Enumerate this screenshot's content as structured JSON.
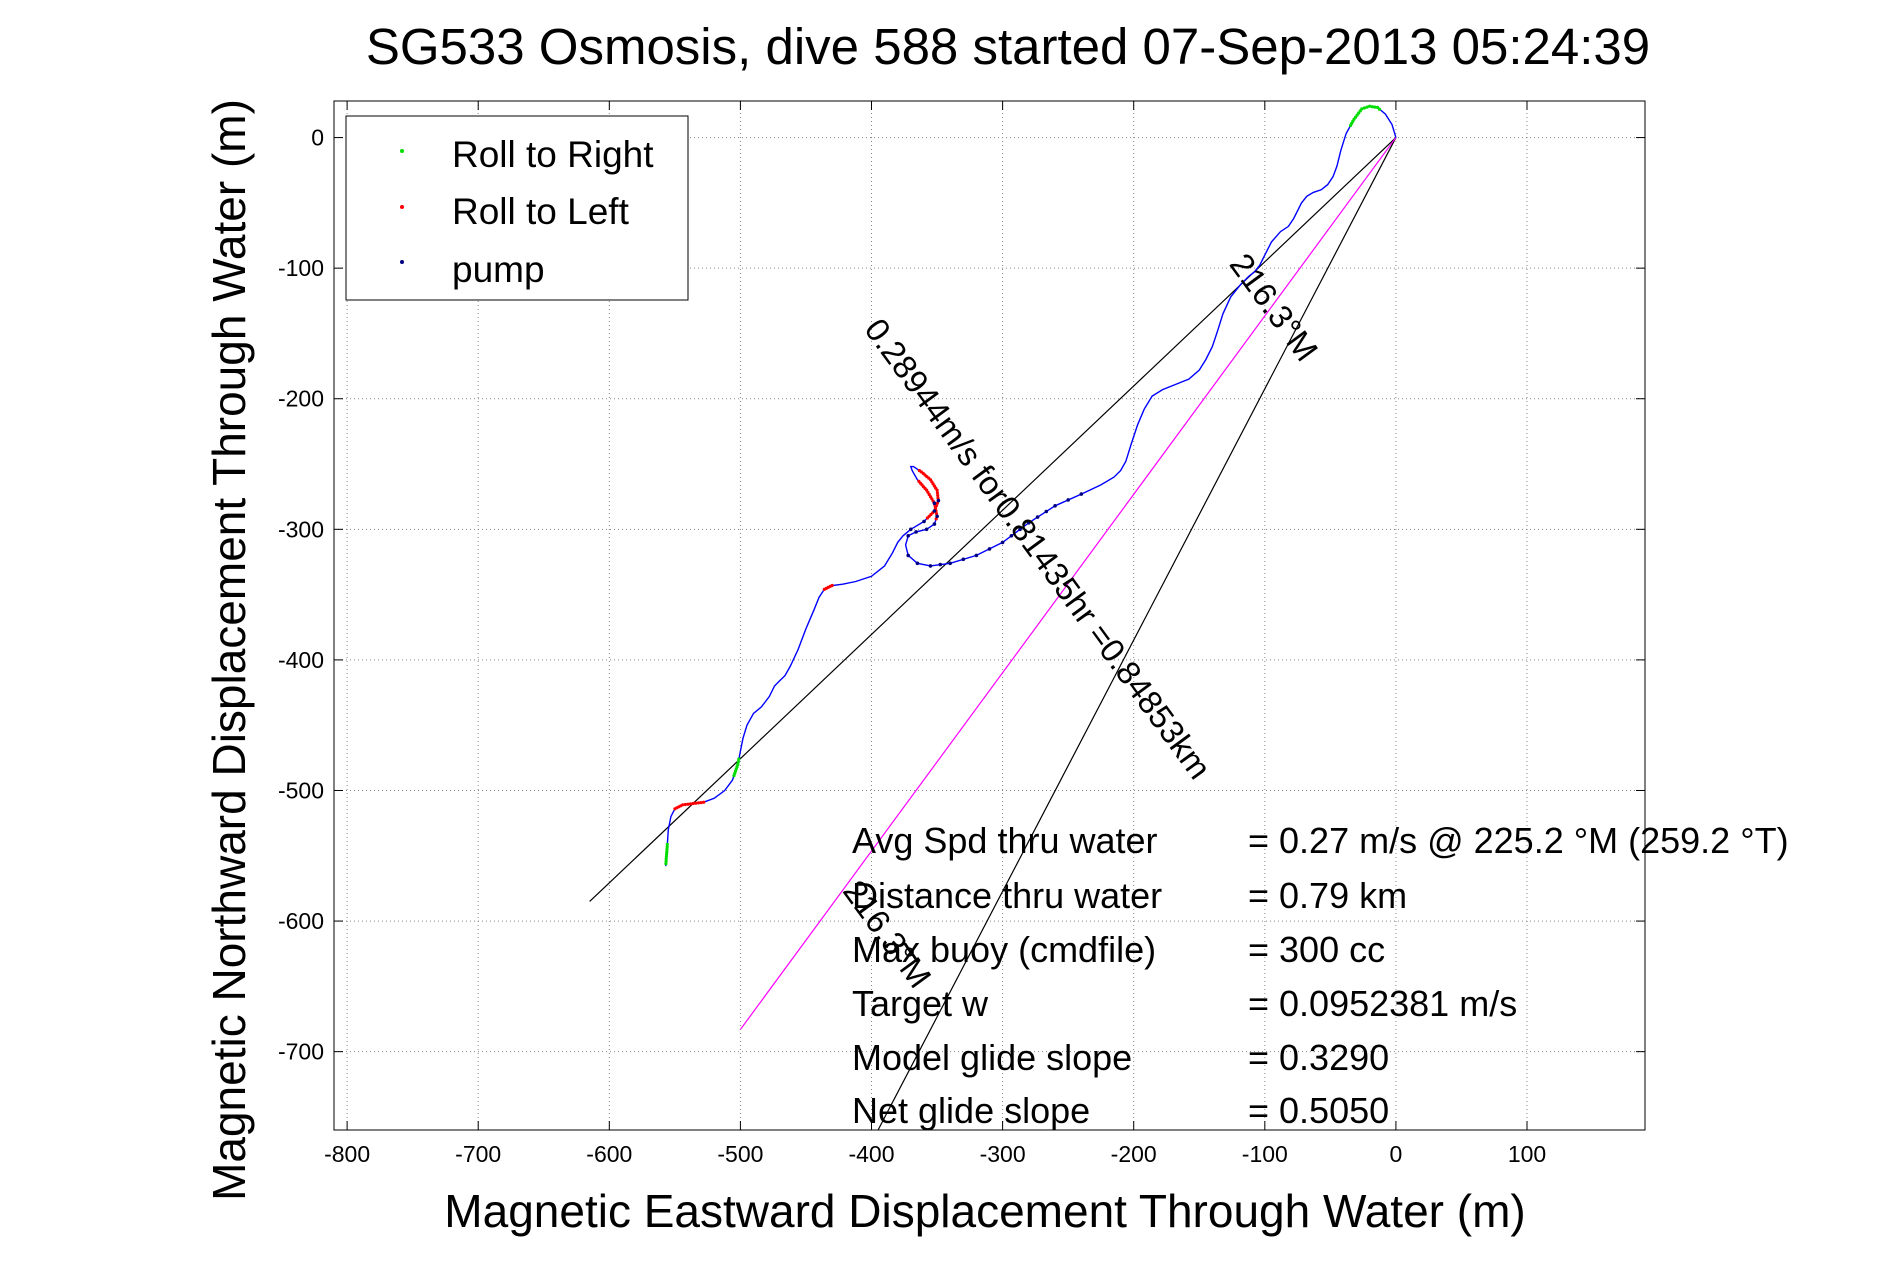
{
  "chart_data": {
    "type": "line",
    "title": "SG533 Osmosis, dive 588 started 07-Sep-2013 05:24:39",
    "xlabel": "Magnetic Eastward Displacement Through Water (m)",
    "ylabel": "Magnetic Northward Displacement Through Water (m)",
    "xlim": [
      -810,
      190
    ],
    "ylim": [
      -760,
      28
    ],
    "xticks": [
      -800,
      -700,
      -600,
      -500,
      -400,
      -300,
      -200,
      -100,
      0,
      100
    ],
    "yticks": [
      0,
      -100,
      -200,
      -300,
      -400,
      -500,
      -600,
      -700
    ],
    "xtick_labels": [
      "-800",
      "-700",
      "-600",
      "-500",
      "-400",
      "-300",
      "-200",
      "-100",
      "0",
      "100"
    ],
    "ytick_labels": [
      "0",
      "-100",
      "-200",
      "-300",
      "-400",
      "-500",
      "-600",
      "-700"
    ],
    "grid": true,
    "legend_position": "top-left",
    "legend": [
      {
        "label": "Roll to Right",
        "color": "#00dd00"
      },
      {
        "label": "Roll to Left",
        "color": "#ff0000"
      },
      {
        "label": "pump",
        "color": "#000080"
      }
    ],
    "track_color": "#0000ff",
    "track": {
      "x": [
        0,
        -3,
        -8,
        -14,
        -20,
        -26,
        -32,
        -38,
        -42,
        -45,
        -48,
        -52,
        -57,
        -63,
        -68,
        -72,
        -75,
        -78,
        -82,
        -88,
        -95,
        -100,
        -104,
        -108,
        -112,
        -118,
        -126,
        -132,
        -136,
        -140,
        -145,
        -150,
        -158,
        -168,
        -178,
        -186,
        -192,
        -197,
        -202,
        -206,
        -210,
        -215,
        -225,
        -240,
        -260,
        -280,
        -300,
        -320,
        -340,
        -355,
        -365,
        -372,
        -374,
        -372,
        -366,
        -358,
        -352,
        -350,
        -352,
        -358,
        -365,
        -369,
        -370,
        -368,
        -362,
        -355,
        -350,
        -349,
        -352,
        -360,
        -370,
        -376,
        -380,
        -384,
        -390,
        -400,
        -412,
        -422,
        -430,
        -436,
        -440,
        -444,
        -450,
        -456,
        -462,
        -466,
        -470,
        -474,
        -478,
        -484,
        -490,
        -495,
        -498,
        -500,
        -502,
        -506,
        -512,
        -520,
        -528,
        -536,
        -544,
        -550,
        -553,
        -555,
        -556,
        -557
      ],
      "y": [
        0,
        10,
        18,
        23,
        24,
        22,
        14,
        3,
        -10,
        -22,
        -30,
        -36,
        -40,
        -42,
        -45,
        -50,
        -56,
        -62,
        -68,
        -72,
        -80,
        -90,
        -98,
        -103,
        -106,
        -112,
        -122,
        -135,
        -148,
        -160,
        -170,
        -178,
        -185,
        -189,
        -193,
        -198,
        -208,
        -220,
        -235,
        -248,
        -255,
        -260,
        -266,
        -273,
        -282,
        -295,
        -310,
        -320,
        -326,
        -328,
        -326,
        -320,
        -312,
        -305,
        -302,
        -300,
        -296,
        -290,
        -280,
        -270,
        -262,
        -255,
        -252,
        -252,
        -256,
        -262,
        -270,
        -278,
        -286,
        -294,
        -300,
        -305,
        -310,
        -318,
        -328,
        -336,
        -340,
        -342,
        -343,
        -346,
        -352,
        -362,
        -376,
        -392,
        -405,
        -412,
        -416,
        -420,
        -428,
        -436,
        -441,
        -450,
        -460,
        -470,
        -480,
        -492,
        -500,
        -506,
        -509,
        -510,
        -511,
        -514,
        -520,
        -530,
        -545,
        -558
      ]
    },
    "roll_right_segments": [
      {
        "x_range": [
          -35,
          -12
        ],
        "y_range": [
          5,
          24
        ]
      },
      {
        "x_range": [
          -557,
          -553
        ],
        "y_range": [
          -558,
          -540
        ]
      },
      {
        "x_range": [
          -505,
          -498
        ],
        "y_range": [
          -500,
          -475
        ]
      }
    ],
    "roll_left_segments": [
      {
        "x_range": [
          -364,
          -335
        ],
        "y_range": [
          -292,
          -252
        ]
      },
      {
        "x_range": [
          -550,
          -528
        ],
        "y_range": [
          -515,
          -507
        ]
      },
      {
        "x_range": [
          -440,
          -420
        ],
        "y_range": [
          -347,
          -343
        ]
      }
    ],
    "pump_segment": {
      "x_range": [
        -372,
        -240
      ],
      "y_range": [
        -328,
        -272
      ]
    },
    "lines": [
      {
        "name": "",
        "color": "#000000",
        "x": [
          0,
          -615
        ],
        "y": [
          0,
          -585
        ]
      },
      {
        "name": "",
        "color": "#000000",
        "x": [
          0,
          -395
        ],
        "y": [
          0,
          -760
        ]
      },
      {
        "name": "",
        "color": "#ff00ff",
        "x": [
          0,
          -500
        ],
        "y": [
          0,
          -683
        ]
      }
    ],
    "annotations": {
      "rotated": [
        {
          "text": "0.28944m/s for0.81435hr =0.84853km",
          "x": -280,
          "y": -320,
          "angle": 53.8
        },
        {
          "text": "216.3°M",
          "x": -100,
          "y": -135,
          "angle": 53.8
        },
        {
          "text": "216.3°M",
          "x": -395,
          "y": -615,
          "angle": 53.8
        }
      ],
      "stats": [
        {
          "label": "Avg Spd thru water",
          "value": "=  0.27 m/s @ 225.2 °M (259.2 °T)"
        },
        {
          "label": "Distance thru water",
          "value": "=  0.79 km"
        },
        {
          "label": "Max buoy (cmdfile)",
          "value": "= 300 cc"
        },
        {
          "label": "Target w",
          "value": "= 0.0952381 m/s"
        },
        {
          "label": "Model glide slope",
          "value": "= 0.3290"
        },
        {
          "label": "Net glide slope",
          "value": "= 0.5050"
        }
      ]
    }
  }
}
